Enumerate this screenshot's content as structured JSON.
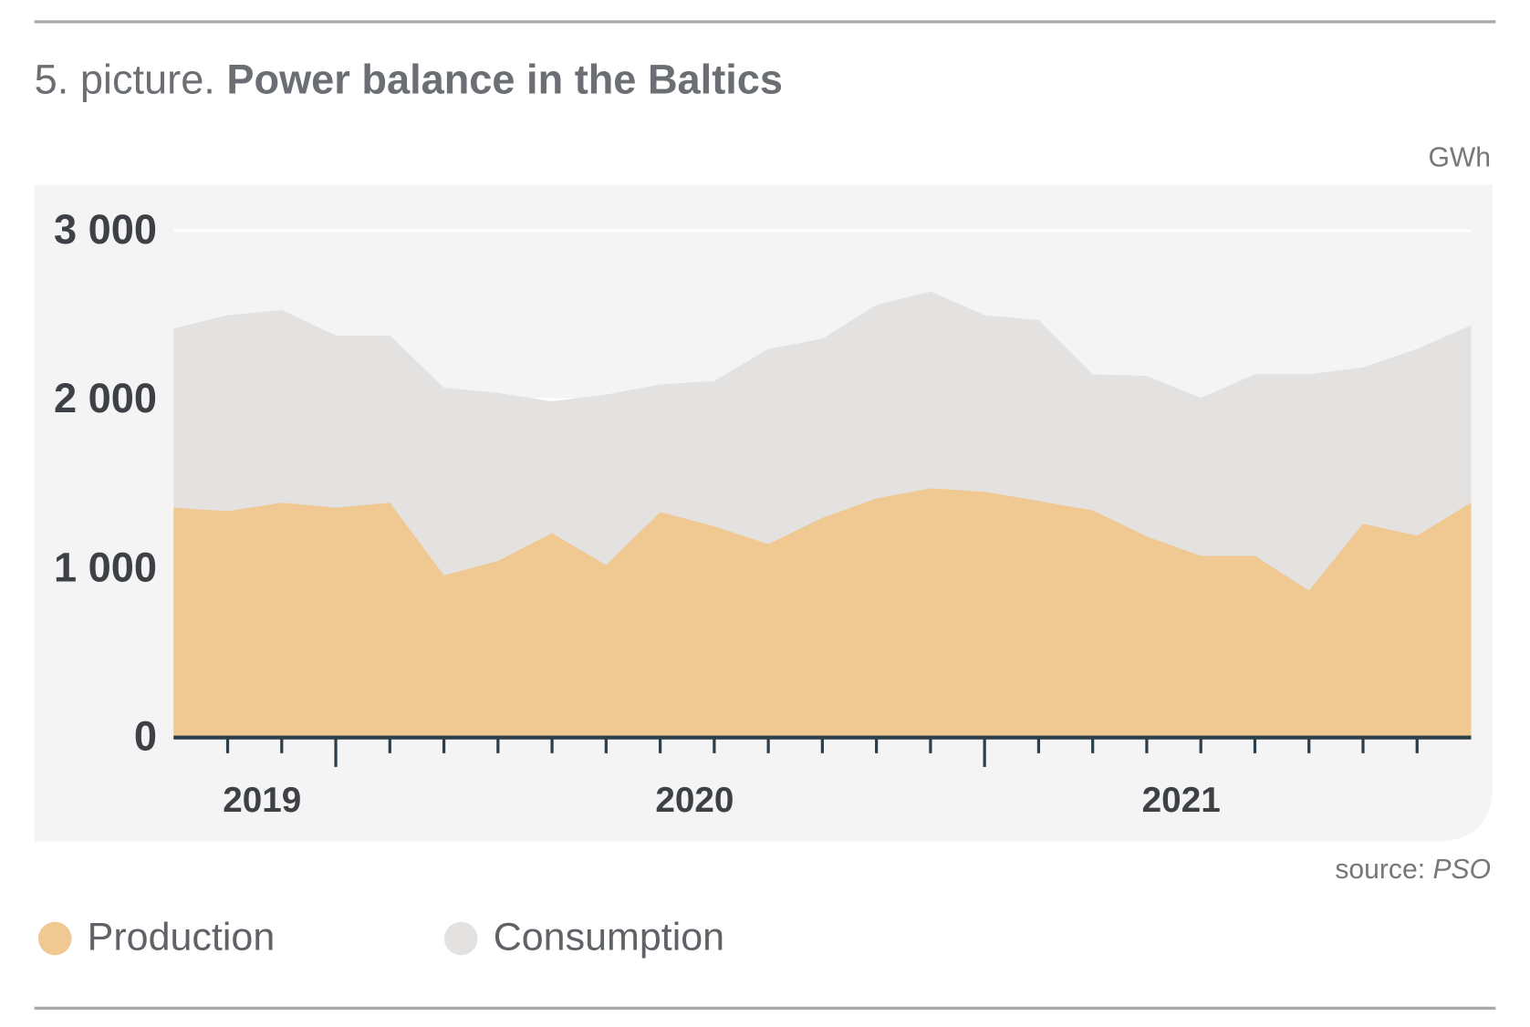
{
  "chart_data": {
    "type": "area",
    "title_prefix": "5. picture.",
    "title": "Power balance in the Baltics",
    "unit": "GWh",
    "source_label": "source:",
    "source": "PSO",
    "categories": [
      null,
      null,
      "2019",
      null,
      null,
      null,
      null,
      null,
      null,
      null,
      "2020",
      null,
      null,
      null,
      null,
      null,
      null,
      null,
      null,
      "2021",
      null,
      null,
      null,
      null,
      null
    ],
    "series": [
      {
        "name": "Production",
        "color": "#f0c891",
        "values": [
          1360,
          1340,
          1390,
          1360,
          1390,
          960,
          1045,
          1210,
          1020,
          1335,
          1250,
          1145,
          1300,
          1415,
          1475,
          1455,
          1400,
          1345,
          1190,
          1075,
          1075,
          870,
          1265,
          1195,
          1390
        ]
      },
      {
        "name": "Consumption",
        "color": "#e4e2e1",
        "values": [
          2420,
          2500,
          2530,
          2380,
          2380,
          2070,
          2040,
          1990,
          2030,
          2090,
          2110,
          2300,
          2360,
          2560,
          2640,
          2500,
          2470,
          2150,
          2140,
          2010,
          2150,
          2150,
          2190,
          2300,
          2440
        ]
      }
    ],
    "ylim": [
      0,
      3000
    ],
    "yticks": [
      0,
      {
        "value": 1000,
        "label": "1 000"
      },
      {
        "value": 2000,
        "label": "2 000"
      },
      {
        "value": 3000,
        "label": "3 000"
      }
    ],
    "grid": true
  }
}
